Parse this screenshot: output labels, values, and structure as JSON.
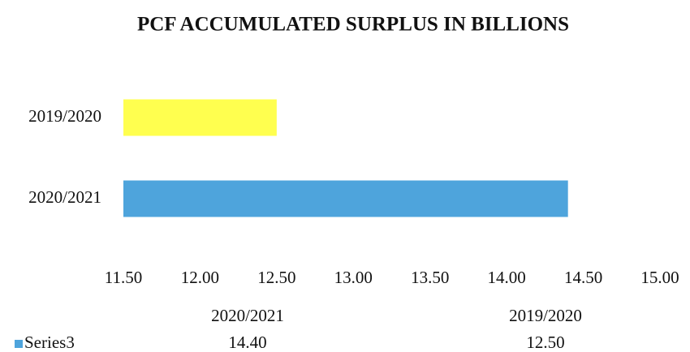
{
  "chart_data": {
    "type": "bar",
    "orientation": "horizontal",
    "title": "PCF ACCUMULATED SURPLUS IN BILLIONS",
    "categories": [
      "2020/2021",
      "2019/2020"
    ],
    "series": [
      {
        "name": "Series3",
        "color": "#4ea4dc",
        "point_colors": [
          "#4ea4dc",
          "#ffff4f"
        ],
        "values": [
          14.4,
          12.5
        ],
        "value_labels": [
          "14.40",
          "12.50"
        ]
      }
    ],
    "xlim": [
      11.5,
      15
    ],
    "xticks": [
      {
        "value": 11.5,
        "label": "11.50"
      },
      {
        "value": 12,
        "label": "12.00"
      },
      {
        "value": 12.5,
        "label": "12.50"
      },
      {
        "value": 13,
        "label": "13.00"
      },
      {
        "value": 13.5,
        "label": "13.50"
      },
      {
        "value": 14,
        "label": "14.00"
      },
      {
        "value": 14.5,
        "label": "14.50"
      },
      {
        "value": 15,
        "label": "15.00"
      }
    ],
    "grid": false,
    "data_table": true
  }
}
